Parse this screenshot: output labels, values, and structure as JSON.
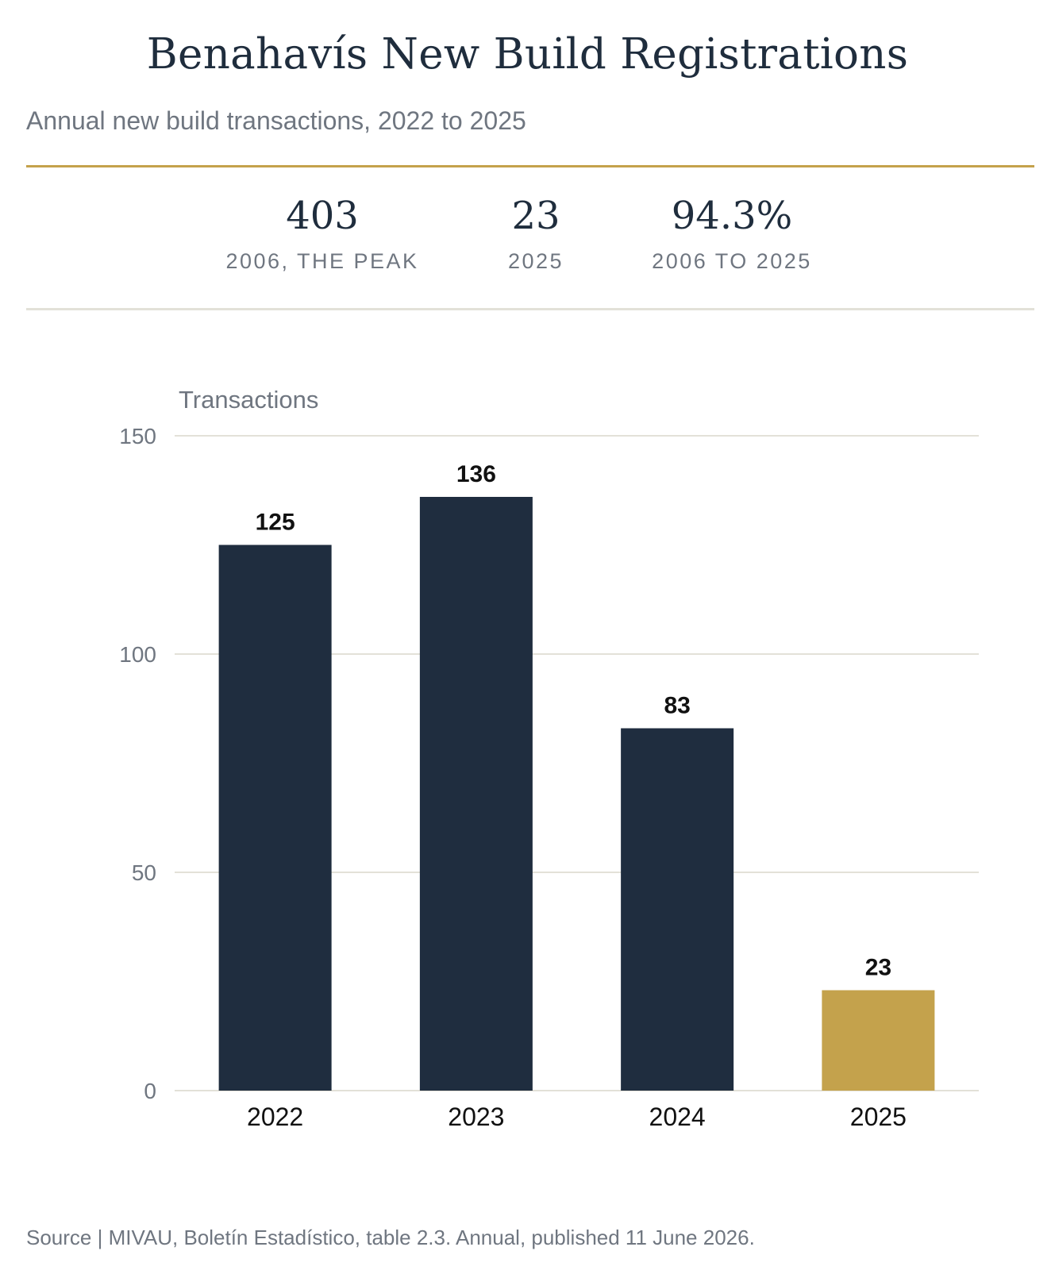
{
  "header": {
    "title": "Benahavís New Build Registrations",
    "subtitle": "Annual new build transactions, 2022 to 2025"
  },
  "stats": [
    {
      "value": "403",
      "label": "2006, THE PEAK"
    },
    {
      "value": "23",
      "label": "2025"
    },
    {
      "value": "94.3%",
      "label": "2006 TO 2025"
    }
  ],
  "chart_data": {
    "type": "bar",
    "categories": [
      "2022",
      "2023",
      "2024",
      "2025"
    ],
    "values": [
      125,
      136,
      83,
      23
    ],
    "ylabel": "Transactions",
    "xlabel": "",
    "ylim": [
      0,
      150
    ],
    "yticks": [
      0,
      50,
      100,
      150
    ],
    "grid": true,
    "colors": {
      "bar": "#1f2d3f",
      "highlight": "#c4a24c",
      "highlight_category": "2025",
      "grid": "#e3e1d8"
    }
  },
  "footer": {
    "source": "Source | MIVAU, Boletín Estadístico, table 2.3. Annual, published 11 June 2026."
  }
}
